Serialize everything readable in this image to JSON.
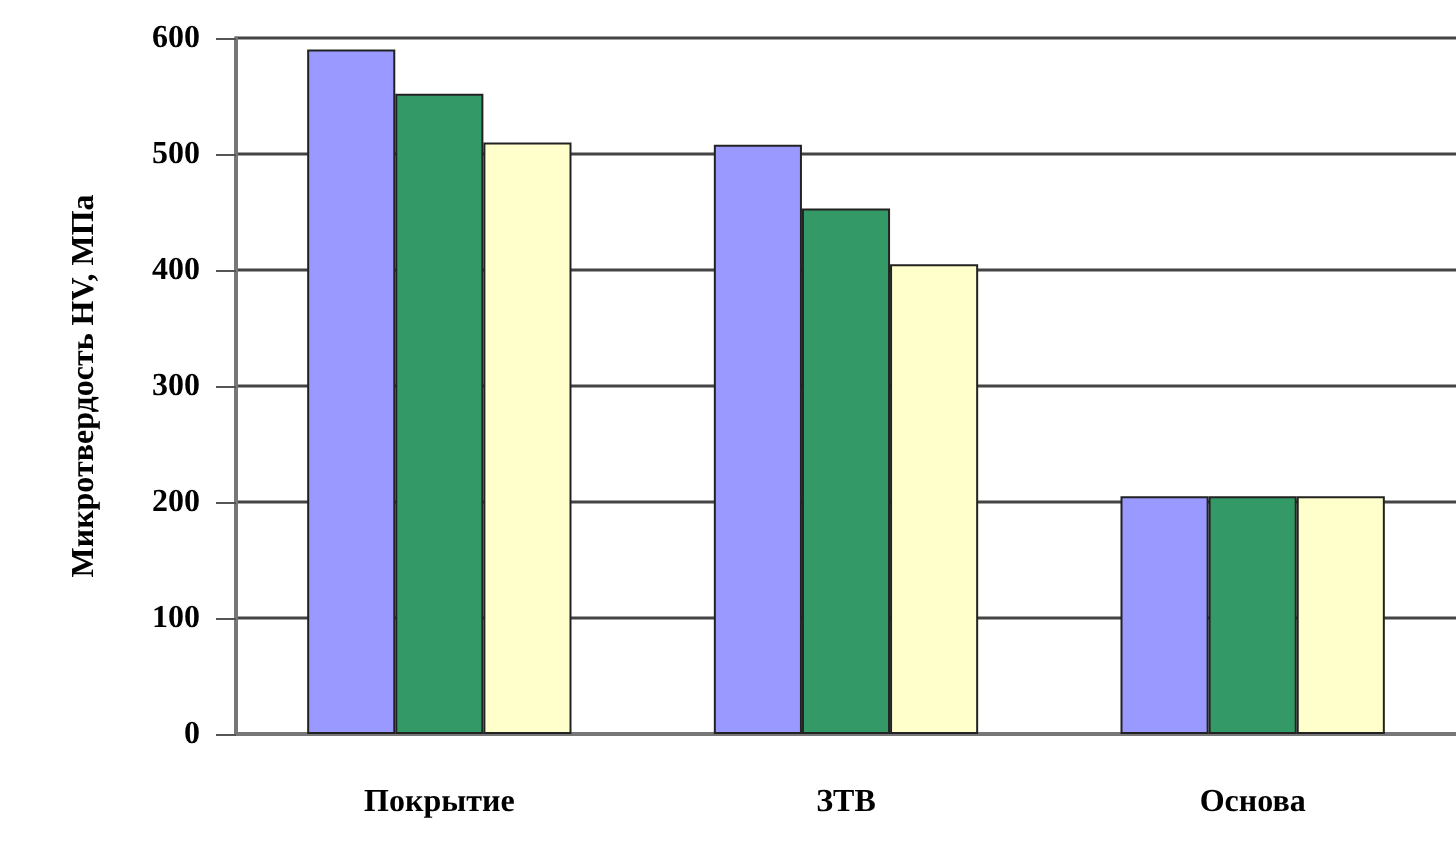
{
  "chart_data": {
    "type": "bar",
    "ylabel": "Микротвердость HV, МПа",
    "categories": [
      "Покрытие",
      "ЗТВ",
      "Основа"
    ],
    "series": [
      {
        "color": "#9999ff",
        "values": [
          590,
          508,
          205
        ]
      },
      {
        "color": "#339966",
        "values": [
          552,
          453,
          205
        ]
      },
      {
        "color": "#ffffcc",
        "values": [
          510,
          405,
          205
        ]
      }
    ],
    "ylim": [
      0,
      600
    ],
    "yticks": [
      0,
      100,
      200,
      300,
      400,
      500,
      600
    ],
    "grid": "y"
  }
}
